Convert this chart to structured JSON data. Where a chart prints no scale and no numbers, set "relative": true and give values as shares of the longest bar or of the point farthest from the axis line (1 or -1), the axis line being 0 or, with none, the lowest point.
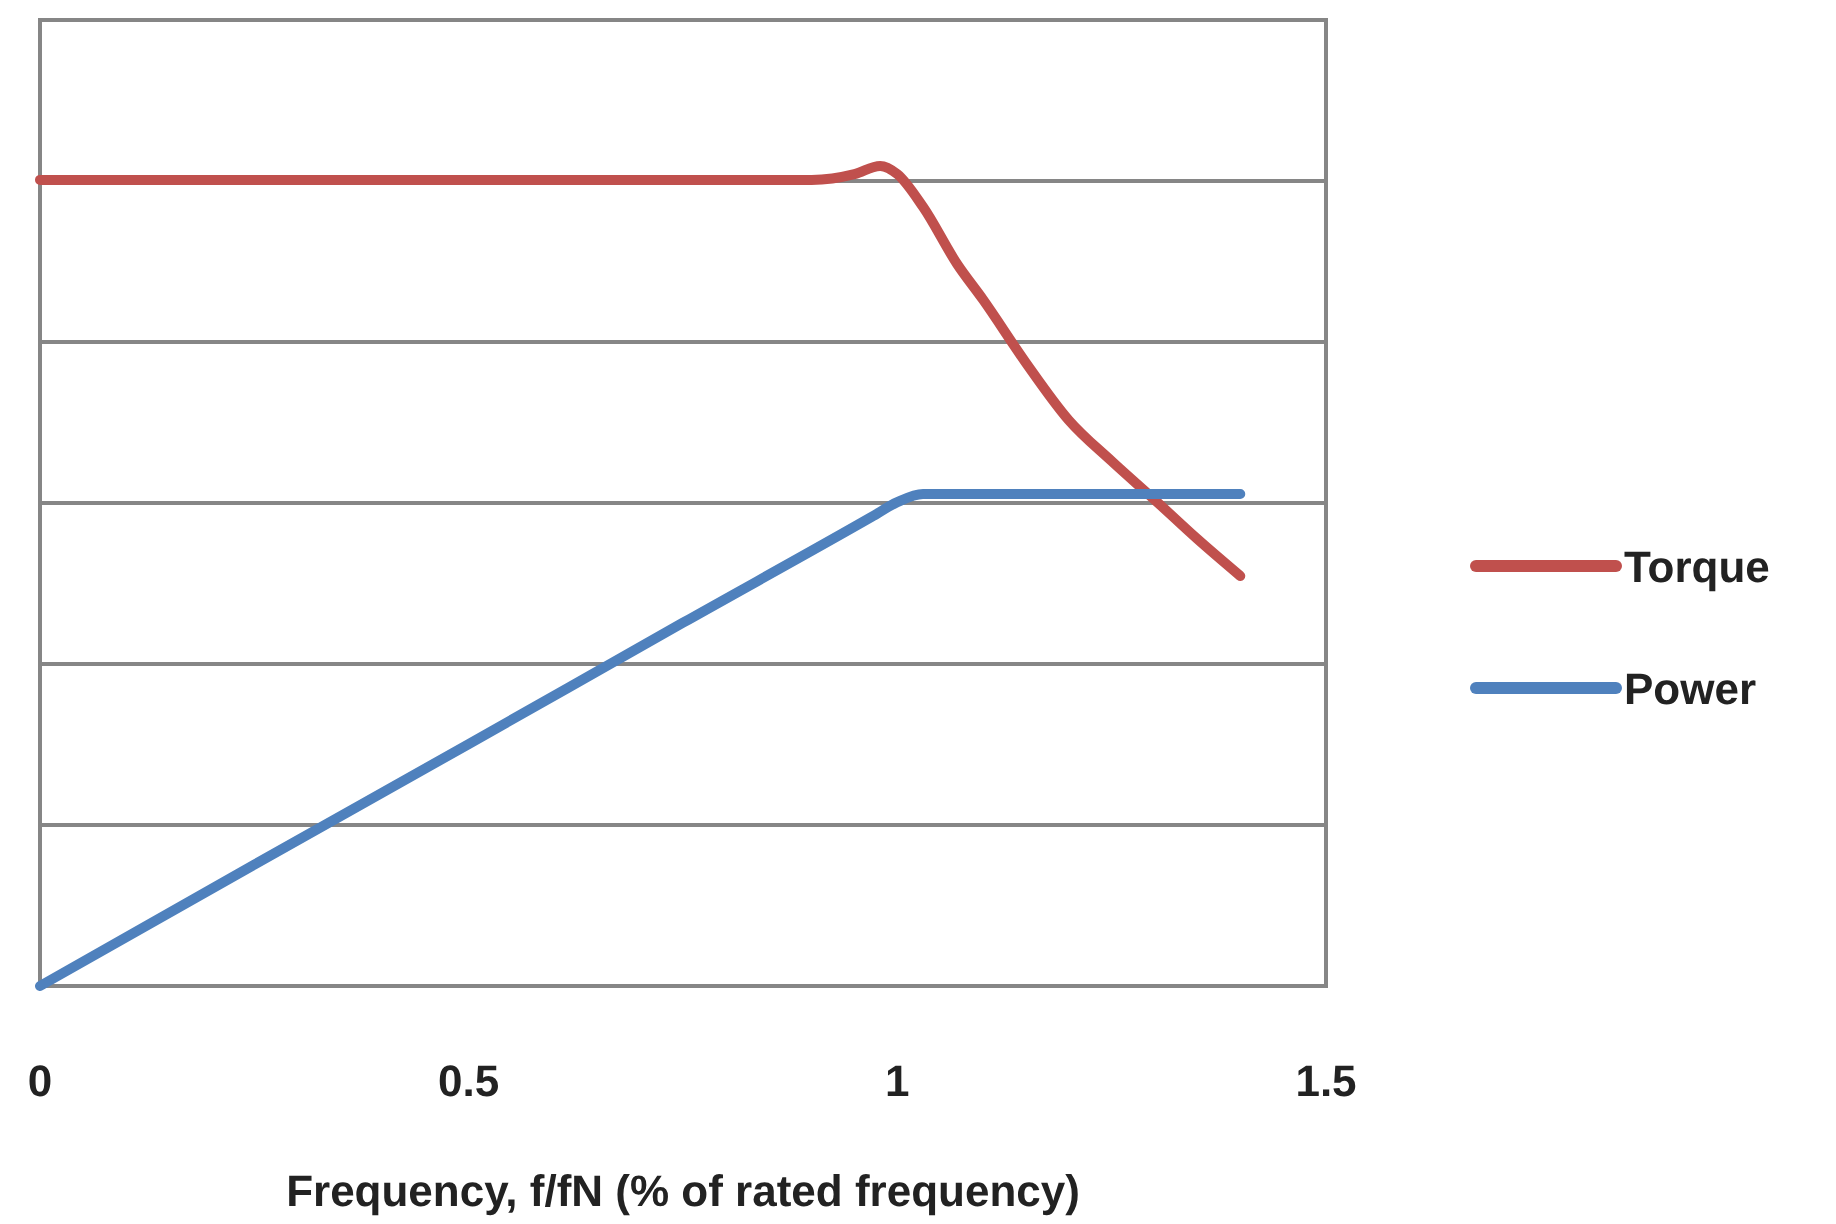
{
  "chart_data": {
    "type": "line",
    "xlabel": "Frequency, f/fN (% of rated frequency)",
    "relative": true,
    "xlim": [
      0,
      1.5
    ],
    "xticks": [
      0,
      0.5,
      1,
      1.5
    ],
    "grid": "y",
    "legend": "right",
    "line_style": "solid",
    "series": [
      {
        "name": "Torque",
        "color": "#c0504d",
        "x": [
          0,
          0.5,
          0.9,
          0.95,
          0.98,
          1.0,
          1.03,
          1.07,
          1.1,
          1.15,
          1.2,
          1.25,
          1.3,
          1.35,
          1.4
        ],
        "values": [
          0.983,
          0.983,
          0.983,
          0.99,
          1,
          0.99,
          0.95,
          0.88,
          0.837,
          0.76,
          0.69,
          0.64,
          0.593,
          0.545,
          0.5
        ]
      },
      {
        "name": "Power",
        "color": "#4f81bd",
        "x": [
          0,
          0.25,
          0.5,
          0.75,
          0.97,
          1.0,
          1.03,
          1.1,
          1.4
        ],
        "values": [
          0,
          0.148,
          0.295,
          0.443,
          0.572,
          0.59,
          0.6,
          0.6,
          0.6
        ]
      }
    ]
  }
}
